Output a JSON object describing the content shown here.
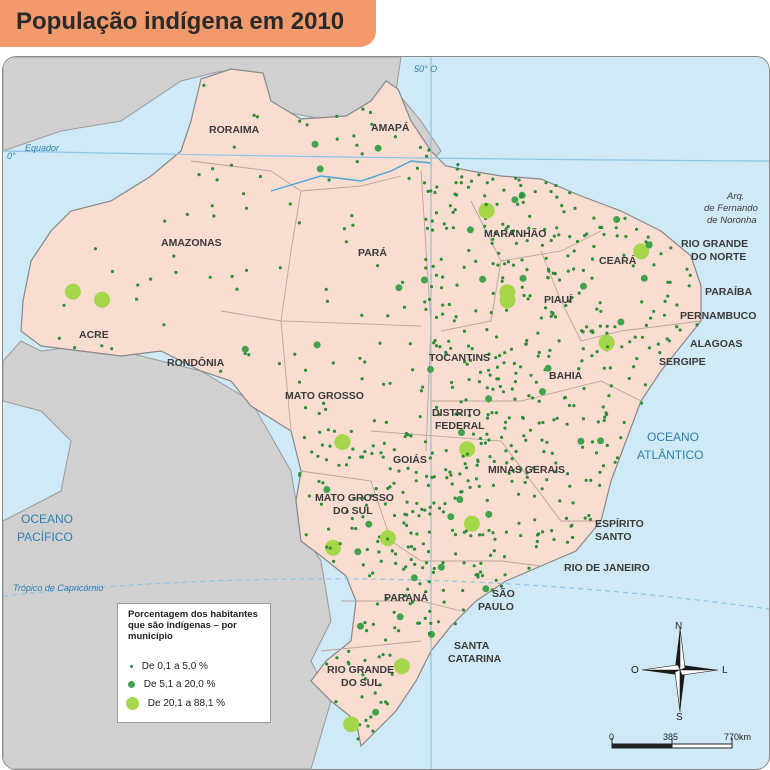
{
  "title": "População indígena em 2010",
  "map": {
    "graticule": {
      "meridian_label": "50° O",
      "equator_label": "Equador",
      "equator_degree": "0°",
      "tropic_label": "Trópico de Capricórnio"
    },
    "oceans": [
      {
        "name": "pacific_line1",
        "text": "OCEANO"
      },
      {
        "name": "pacific_line2",
        "text": "PACÍFICO"
      },
      {
        "name": "atlantic_line1",
        "text": "OCEANO"
      },
      {
        "name": "atlantic_line2",
        "text": "ATLÂNTICO"
      }
    ],
    "island_label": [
      "Arq.",
      "de Fernando",
      "de Noronha"
    ],
    "states": {
      "roraima": "RORAIMA",
      "amapa": "AMAPÁ",
      "amazonas": "AMAZONAS",
      "para": "PARÁ",
      "maranhao": "MARANHÃO",
      "ceara": "CEARÁ",
      "rio_grande_do_norte_1": "RIO GRANDE",
      "rio_grande_do_norte_2": "DO NORTE",
      "paraiba": "PARAÍBA",
      "pernambuco": "PERNAMBUCO",
      "alagoas": "ALAGOAS",
      "sergipe": "SERGIPE",
      "piaui": "PIAUÍ",
      "acre": "ACRE",
      "rondonia": "RONDÔNIA",
      "tocantins": "TOCANTINS",
      "bahia": "BAHIA",
      "mato_grosso": "MATO GROSSO",
      "distrito_federal_1": "DISTRITO",
      "distrito_federal_2": "FEDERAL",
      "goias": "GOIÁS",
      "minas_gerais": "MINAS GERAIS",
      "espirito_santo_1": "ESPÍRITO",
      "espirito_santo_2": "SANTO",
      "mato_grosso_do_sul_1": "MATO GROSSO",
      "mato_grosso_do_sul_2": "DO SUL",
      "rio_de_janeiro": "RIO DE JANEIRO",
      "sao_paulo_1": "SÃO",
      "sao_paulo_2": "PAULO",
      "parana": "PARANÁ",
      "santa_catarina_1": "SANTA",
      "santa_catarina_2": "CATARINA",
      "rio_grande_do_sul_1": "RIO GRANDE",
      "rio_grande_do_sul_2": "DO SUL"
    },
    "legend": {
      "title": "Porcentagem dos habitantes que são indígenas – por município",
      "items": [
        {
          "label": "De 0,1 a 5,0 %",
          "color": "#2e8b3a"
        },
        {
          "label": "De 5,1 a 20,0 %",
          "color": "#3fa34d"
        },
        {
          "label": "De 20,1 a 88,1 %",
          "color": "#a6d64a"
        }
      ]
    },
    "compass": {
      "north": "N",
      "south": "S",
      "east": "L",
      "west": "O"
    },
    "scale_bar": {
      "ticks": [
        "0",
        "385",
        "770km"
      ]
    },
    "colors": {
      "land_brazil": "#f8ddd0",
      "land_other": "#d0d0d0",
      "water": "#cfeaf6",
      "small_dot": "#2e8b3a",
      "large_dot": "#a6d64a"
    }
  }
}
